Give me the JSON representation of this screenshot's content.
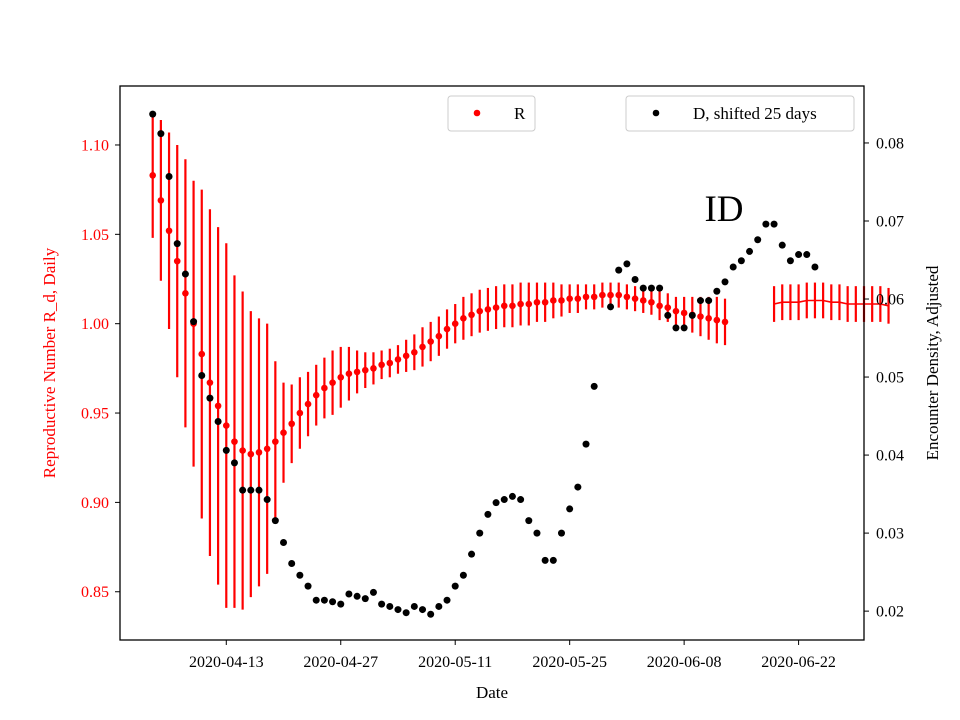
{
  "chart_data": {
    "type": "scatter",
    "annotation": "ID",
    "xlabel": "Date",
    "ylabel_left": "Reproductive Number R_d, Daily",
    "ylabel_right": "Encounter Density, Adjusted",
    "x_ticks": [
      "2020-04-13",
      "2020-04-27",
      "2020-05-11",
      "2020-05-25",
      "2020-06-08",
      "2020-06-22"
    ],
    "y_left_ticks": [
      "0.85",
      "0.90",
      "0.95",
      "1.00",
      "1.05",
      "1.10"
    ],
    "y_right_ticks": [
      "0.02",
      "0.03",
      "0.04",
      "0.05",
      "0.06",
      "0.07",
      "0.08"
    ],
    "x_range": [
      "2020-03-31",
      "2020-06-30"
    ],
    "y_left_range": [
      0.823,
      1.133
    ],
    "y_right_range": [
      0.0163,
      0.0873
    ],
    "legend_left": {
      "label": "R"
    },
    "legend_right": {
      "label": "D, shifted 25 days"
    },
    "colors": {
      "r_series": "#ff0000",
      "d_series": "#000000",
      "axis_left": "#ff0000",
      "axis_right": "#000000"
    },
    "r_series": {
      "start": "2020-04-04",
      "values": [
        1.083,
        1.069,
        1.052,
        1.035,
        1.017,
        1.0,
        0.983,
        0.967,
        0.954,
        0.943,
        0.934,
        0.929,
        0.927,
        0.928,
        0.93,
        0.934,
        0.939,
        0.944,
        0.95,
        0.955,
        0.96,
        0.964,
        0.967,
        0.97,
        0.972,
        0.973,
        0.974,
        0.975,
        0.977,
        0.978,
        0.98,
        0.982,
        0.984,
        0.987,
        0.99,
        0.993,
        0.997,
        1.0,
        1.003,
        1.005,
        1.007,
        1.008,
        1.009,
        1.01,
        1.01,
        1.011,
        1.011,
        1.012,
        1.012,
        1.013,
        1.013,
        1.014,
        1.014,
        1.015,
        1.015,
        1.016,
        1.016,
        1.016,
        1.015,
        1.014,
        1.013,
        1.012,
        1.01,
        1.009,
        1.007,
        1.006,
        1.005,
        1.004,
        1.003,
        1.002,
        1.001
      ],
      "err": [
        0.035,
        0.045,
        0.055,
        0.065,
        0.075,
        0.08,
        0.092,
        0.097,
        0.1,
        0.102,
        0.093,
        0.089,
        0.08,
        0.075,
        0.07,
        0.045,
        0.028,
        0.022,
        0.02,
        0.018,
        0.017,
        0.017,
        0.018,
        0.017,
        0.015,
        0.012,
        0.01,
        0.009,
        0.008,
        0.008,
        0.008,
        0.009,
        0.01,
        0.011,
        0.011,
        0.011,
        0.011,
        0.011,
        0.012,
        0.012,
        0.012,
        0.012,
        0.012,
        0.012,
        0.012,
        0.012,
        0.012,
        0.011,
        0.011,
        0.01,
        0.009,
        0.008,
        0.008,
        0.007,
        0.007,
        0.007,
        0.007,
        0.007,
        0.007,
        0.007,
        0.007,
        0.007,
        0.008,
        0.008,
        0.008,
        0.009,
        0.01,
        0.011,
        0.012,
        0.013,
        0.013
      ]
    },
    "r_tail": {
      "start": "2020-06-19",
      "values": [
        1.011,
        1.012,
        1.012,
        1.012,
        1.013,
        1.013,
        1.013,
        1.012,
        1.012,
        1.011,
        1.011,
        1.011,
        1.011,
        1.011,
        1.01
      ],
      "err": [
        0.01,
        0.01,
        0.01,
        0.01,
        0.01,
        0.01,
        0.01,
        0.01,
        0.01,
        0.01,
        0.01,
        0.01,
        0.01,
        0.01,
        0.01
      ]
    },
    "d_series": {
      "points": [
        [
          "2020-04-04",
          0.0837
        ],
        [
          "2020-04-05",
          0.0812
        ],
        [
          "2020-04-06",
          0.0757
        ],
        [
          "2020-04-07",
          0.0671
        ],
        [
          "2020-04-08",
          0.0632
        ],
        [
          "2020-04-09",
          0.0571
        ],
        [
          "2020-04-10",
          0.0502
        ],
        [
          "2020-04-11",
          0.0473
        ],
        [
          "2020-04-12",
          0.0443
        ],
        [
          "2020-04-13",
          0.0406
        ],
        [
          "2020-04-14",
          0.039
        ],
        [
          "2020-04-15",
          0.0355
        ],
        [
          "2020-04-16",
          0.0355
        ],
        [
          "2020-04-17",
          0.0355
        ],
        [
          "2020-04-18",
          0.0343
        ],
        [
          "2020-04-19",
          0.0316
        ],
        [
          "2020-04-20",
          0.0288
        ],
        [
          "2020-04-21",
          0.0261
        ],
        [
          "2020-04-22",
          0.0246
        ],
        [
          "2020-04-23",
          0.0232
        ],
        [
          "2020-04-24",
          0.0214
        ],
        [
          "2020-04-25",
          0.0214
        ],
        [
          "2020-04-26",
          0.0212
        ],
        [
          "2020-04-27",
          0.0209
        ],
        [
          "2020-04-28",
          0.0222
        ],
        [
          "2020-04-29",
          0.0219
        ],
        [
          "2020-04-30",
          0.0216
        ],
        [
          "2020-05-01",
          0.0224
        ],
        [
          "2020-05-02",
          0.0209
        ],
        [
          "2020-05-03",
          0.0206
        ],
        [
          "2020-05-04",
          0.0202
        ],
        [
          "2020-05-05",
          0.0198
        ],
        [
          "2020-05-06",
          0.0206
        ],
        [
          "2020-05-07",
          0.0202
        ],
        [
          "2020-05-08",
          0.0196
        ],
        [
          "2020-05-09",
          0.0206
        ],
        [
          "2020-05-10",
          0.0214
        ],
        [
          "2020-05-11",
          0.0232
        ],
        [
          "2020-05-12",
          0.0246
        ],
        [
          "2020-05-13",
          0.0273
        ],
        [
          "2020-05-14",
          0.03
        ],
        [
          "2020-05-15",
          0.0324
        ],
        [
          "2020-05-16",
          0.0339
        ],
        [
          "2020-05-17",
          0.0343
        ],
        [
          "2020-05-18",
          0.0347
        ],
        [
          "2020-05-19",
          0.0343
        ],
        [
          "2020-05-20",
          0.0316
        ],
        [
          "2020-05-21",
          0.03
        ],
        [
          "2020-05-22",
          0.0265
        ],
        [
          "2020-05-23",
          0.0265
        ],
        [
          "2020-05-24",
          0.03
        ],
        [
          "2020-05-25",
          0.0331
        ],
        [
          "2020-05-26",
          0.0359
        ],
        [
          "2020-05-27",
          0.0414
        ],
        [
          "2020-05-28",
          0.0488
        ],
        [
          "2020-05-30",
          0.059
        ],
        [
          "2020-05-31",
          0.0637
        ],
        [
          "2020-06-01",
          0.0645
        ],
        [
          "2020-06-02",
          0.0625
        ],
        [
          "2020-06-03",
          0.0614
        ],
        [
          "2020-06-04",
          0.0614
        ],
        [
          "2020-06-05",
          0.0614
        ],
        [
          "2020-06-06",
          0.0579
        ],
        [
          "2020-06-07",
          0.0563
        ],
        [
          "2020-06-08",
          0.0563
        ],
        [
          "2020-06-09",
          0.0579
        ],
        [
          "2020-06-10",
          0.0598
        ],
        [
          "2020-06-11",
          0.0598
        ],
        [
          "2020-06-12",
          0.061
        ],
        [
          "2020-06-13",
          0.0622
        ],
        [
          "2020-06-14",
          0.0641
        ],
        [
          "2020-06-15",
          0.0649
        ],
        [
          "2020-06-16",
          0.0661
        ],
        [
          "2020-06-17",
          0.0676
        ],
        [
          "2020-06-18",
          0.0696
        ],
        [
          "2020-06-19",
          0.0696
        ],
        [
          "2020-06-20",
          0.0669
        ],
        [
          "2020-06-21",
          0.0649
        ],
        [
          "2020-06-22",
          0.0657
        ],
        [
          "2020-06-23",
          0.0657
        ],
        [
          "2020-06-24",
          0.0641
        ]
      ]
    }
  }
}
